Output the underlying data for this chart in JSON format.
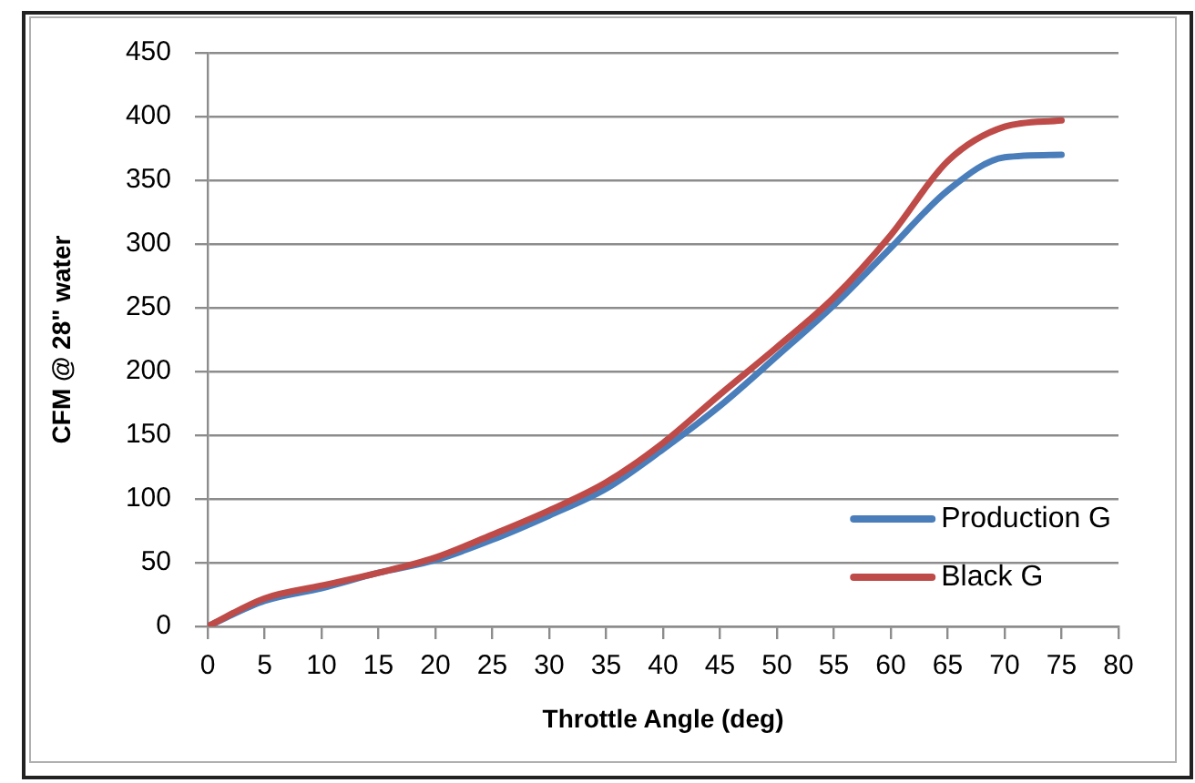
{
  "chart_data": {
    "type": "line",
    "xlabel": "Throttle Angle (deg)",
    "ylabel": "CFM @ 28\" water",
    "x": [
      0,
      5,
      10,
      15,
      20,
      25,
      30,
      35,
      40,
      45,
      50,
      55,
      60,
      65,
      70,
      75
    ],
    "series": [
      {
        "name": "Production G",
        "color": "#4a7ebb",
        "values": [
          0,
          20,
          30,
          42,
          52,
          68,
          87,
          108,
          139,
          173,
          212,
          252,
          297,
          342,
          368,
          370
        ]
      },
      {
        "name": "Black G",
        "color": "#be4b48",
        "values": [
          0,
          22,
          32,
          42,
          54,
          72,
          91,
          113,
          144,
          182,
          219,
          258,
          307,
          365,
          392,
          397
        ]
      }
    ],
    "xlim": [
      0,
      80
    ],
    "xticks": [
      0,
      5,
      10,
      15,
      20,
      25,
      30,
      35,
      40,
      45,
      50,
      55,
      60,
      65,
      70,
      75,
      80
    ],
    "ylim": [
      0,
      450
    ],
    "yticks": [
      0,
      50,
      100,
      150,
      200,
      250,
      300,
      350,
      400,
      450
    ],
    "grid": "y",
    "legend": "bottom right",
    "marker": "none",
    "line_style": "solid"
  }
}
